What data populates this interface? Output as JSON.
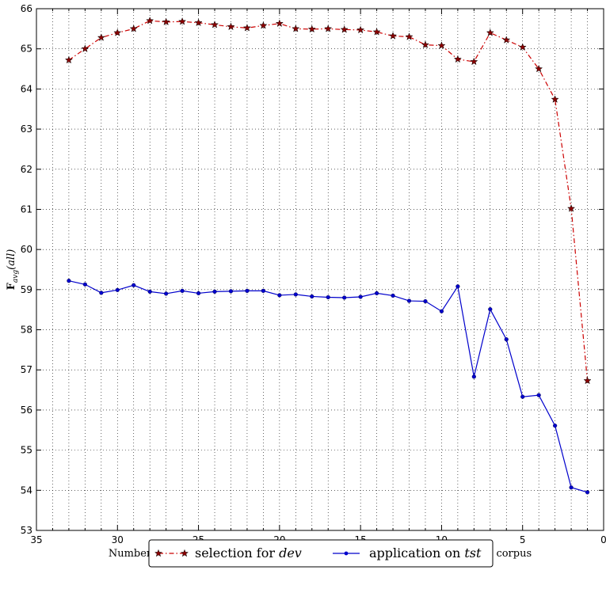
{
  "chart_data": {
    "type": "line",
    "xlabel": "Number of the Best Features ranked by Feature Selection process on dev corpus",
    "ylabel": "F_avg(all)",
    "xlim": [
      35,
      0
    ],
    "ylim": [
      53,
      66
    ],
    "x_ticks": [
      "35",
      "30",
      "25",
      "20",
      "15",
      "10",
      "5",
      "0"
    ],
    "y_ticks": [
      "53",
      "54",
      "55",
      "56",
      "57",
      "58",
      "59",
      "60",
      "61",
      "62",
      "63",
      "64",
      "65",
      "66"
    ],
    "grid": true,
    "legend_position": "bottom-center",
    "x": [
      33,
      32,
      31,
      30,
      29,
      28,
      27,
      26,
      25,
      24,
      23,
      22,
      21,
      20,
      19,
      18,
      17,
      16,
      15,
      14,
      13,
      12,
      11,
      10,
      9,
      8,
      7,
      6,
      5,
      4,
      3,
      2,
      1
    ],
    "series": [
      {
        "name": "selection for dev",
        "color": "#cc0000",
        "marker": "star",
        "line_style": "dash-dot",
        "values": [
          64.72,
          65.0,
          65.28,
          65.4,
          65.5,
          65.7,
          65.67,
          65.68,
          65.65,
          65.6,
          65.55,
          65.52,
          65.58,
          65.63,
          65.5,
          65.49,
          65.5,
          65.48,
          65.47,
          65.42,
          65.32,
          65.3,
          65.1,
          65.08,
          64.74,
          64.68,
          65.4,
          65.22,
          65.04,
          64.5,
          63.74,
          61.02,
          56.73
        ]
      },
      {
        "name": "application on tst",
        "color": "#0000cc",
        "marker": "dot",
        "line_style": "solid",
        "values": [
          59.22,
          59.13,
          58.92,
          58.99,
          59.11,
          58.95,
          58.9,
          58.97,
          58.91,
          58.95,
          58.96,
          58.97,
          58.97,
          58.86,
          58.88,
          58.83,
          58.81,
          58.8,
          58.82,
          58.91,
          58.85,
          58.72,
          58.71,
          58.46,
          59.08,
          56.83,
          58.51,
          57.76,
          56.33,
          56.37,
          55.61,
          54.07,
          53.95
        ]
      }
    ],
    "legend": [
      {
        "prefix": "selection for ",
        "italic": "dev"
      },
      {
        "prefix": "application on ",
        "italic": "tst"
      }
    ]
  }
}
